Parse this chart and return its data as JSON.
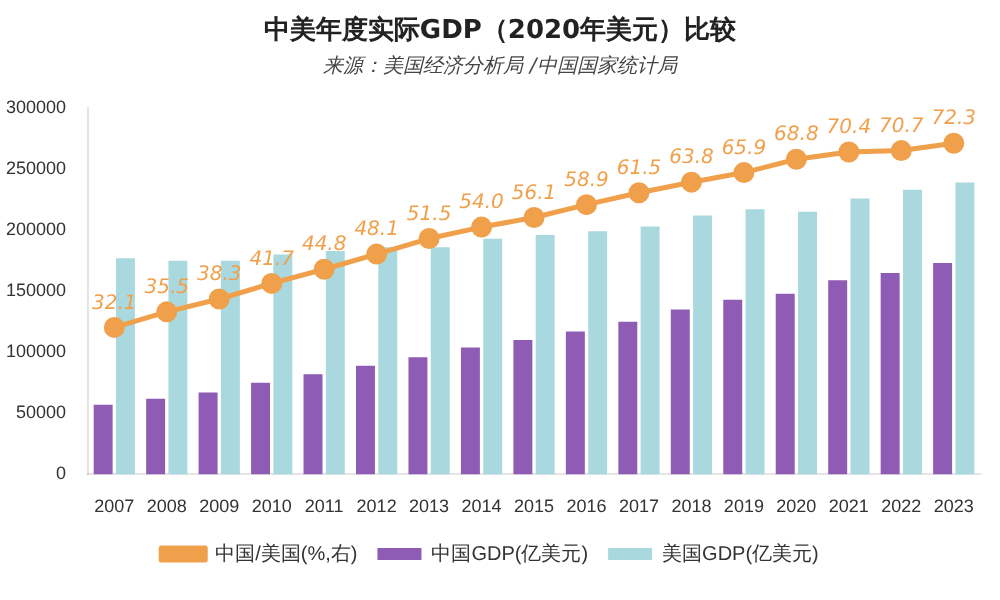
{
  "chart_data": {
    "type": "bar",
    "title": "中美年度实际GDP（2020年美元）比较",
    "subtitle": "来源：美国经济分析局 /中国国家统计局",
    "categories": [
      "2007",
      "2008",
      "2009",
      "2010",
      "2011",
      "2012",
      "2013",
      "2014",
      "2015",
      "2016",
      "2017",
      "2018",
      "2019",
      "2020",
      "2021",
      "2022",
      "2023"
    ],
    "series": [
      {
        "name": "中国GDP(亿美元)",
        "color": "#8e5bb5",
        "values": [
          57000,
          62000,
          67000,
          75000,
          82000,
          89000,
          96000,
          104000,
          110000,
          117000,
          125000,
          135000,
          143000,
          148000,
          159000,
          165000,
          173000
        ]
      },
      {
        "name": "美国GDP(亿美元)",
        "color": "#a9d9df",
        "values": [
          177000,
          175000,
          175000,
          180000,
          183000,
          186000,
          186000,
          193000,
          196000,
          199000,
          203000,
          212000,
          217000,
          215000,
          226000,
          233000,
          239000
        ]
      },
      {
        "name": "中国/美国(%,右)",
        "type": "line",
        "axis": "y2",
        "color": "#f0a04b",
        "marker": "circle",
        "value_labels": [
          "32.1",
          "35.5",
          "38.3",
          "41.7",
          "44.8",
          "48.1",
          "51.5",
          "54.0",
          "56.1",
          "58.9",
          "61.5",
          "63.8",
          "65.9",
          "68.8",
          "70.4",
          "70.7",
          "72.3"
        ],
        "values": [
          32.1,
          35.5,
          38.3,
          41.7,
          44.8,
          48.1,
          51.5,
          54.0,
          56.1,
          58.9,
          61.5,
          63.8,
          65.9,
          68.8,
          70.4,
          70.7,
          72.3
        ]
      }
    ],
    "ylim": [
      0,
      300000
    ],
    "yticks": [
      0,
      50000,
      100000,
      150000,
      200000,
      250000,
      300000
    ],
    "y2lim": [
      0,
      80
    ],
    "grid": false,
    "legend": "bottom"
  }
}
